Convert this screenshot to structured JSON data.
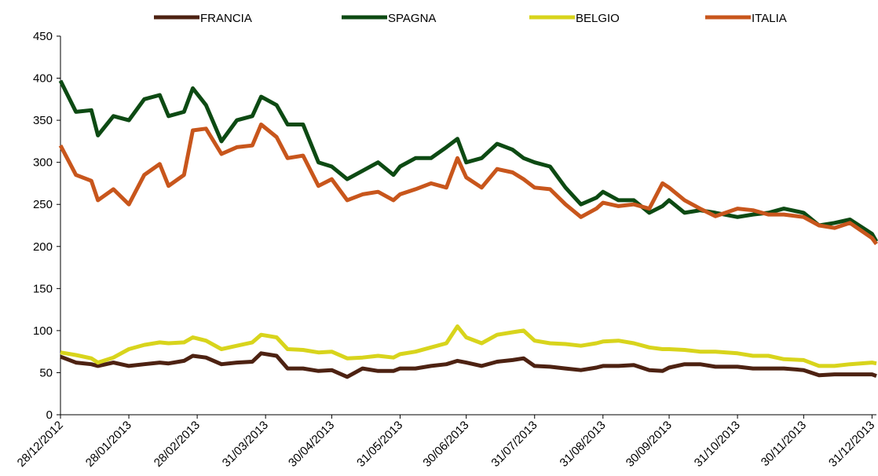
{
  "chart_data": {
    "type": "line",
    "x": [
      "28/12/2012",
      "04/01/2013",
      "11/01/2013",
      "14/01/2013",
      "21/01/2013",
      "28/01/2013",
      "04/02/2013",
      "11/02/2013",
      "15/02/2013",
      "22/02/2013",
      "26/02/2013",
      "04/03/2013",
      "11/03/2013",
      "18/03/2013",
      "25/03/2013",
      "29/03/2013",
      "05/04/2013",
      "10/04/2013",
      "17/04/2013",
      "24/04/2013",
      "30/04/2013",
      "07/05/2013",
      "14/05/2013",
      "21/05/2013",
      "28/05/2013",
      "31/05/2013",
      "07/06/2013",
      "14/06/2013",
      "21/06/2013",
      "26/06/2013",
      "30/06/2013",
      "07/07/2013",
      "14/07/2013",
      "21/07/2013",
      "26/07/2013",
      "31/07/2013",
      "07/08/2013",
      "14/08/2013",
      "21/08/2013",
      "28/08/2013",
      "31/08/2013",
      "07/09/2013",
      "14/09/2013",
      "21/09/2013",
      "27/09/2013",
      "30/09/2013",
      "07/10/2013",
      "14/10/2013",
      "21/10/2013",
      "31/10/2013",
      "07/11/2013",
      "14/11/2013",
      "21/11/2013",
      "30/11/2013",
      "07/12/2013",
      "14/12/2013",
      "21/12/2013",
      "31/12/2013",
      "02/01/2014"
    ],
    "series": [
      {
        "name": "FRANCIA",
        "color": "#4d2212",
        "values": [
          69,
          62,
          60,
          58,
          62,
          58,
          60,
          62,
          61,
          64,
          70,
          68,
          60,
          62,
          63,
          73,
          70,
          55,
          55,
          52,
          53,
          45,
          55,
          52,
          52,
          55,
          55,
          58,
          60,
          64,
          62,
          58,
          63,
          65,
          67,
          58,
          57,
          55,
          53,
          56,
          58,
          58,
          59,
          53,
          52,
          56,
          60,
          60,
          57,
          57,
          55,
          55,
          55,
          53,
          47,
          48,
          48,
          48,
          46
        ]
      },
      {
        "name": "SPAGNA",
        "color": "#0d4a13",
        "values": [
          397,
          360,
          362,
          332,
          355,
          350,
          375,
          380,
          355,
          360,
          388,
          368,
          325,
          350,
          355,
          378,
          368,
          345,
          345,
          300,
          295,
          280,
          290,
          300,
          285,
          295,
          305,
          305,
          318,
          328,
          300,
          305,
          322,
          315,
          305,
          300,
          295,
          270,
          250,
          258,
          265,
          255,
          255,
          240,
          248,
          255,
          240,
          243,
          240,
          235,
          238,
          240,
          245,
          240,
          225,
          228,
          232,
          215,
          206
        ]
      },
      {
        "name": "BELGIO",
        "color": "#d8d41c",
        "values": [
          74,
          71,
          67,
          62,
          68,
          78,
          83,
          86,
          85,
          86,
          92,
          88,
          78,
          82,
          86,
          95,
          92,
          78,
          77,
          74,
          75,
          67,
          68,
          70,
          68,
          72,
          75,
          80,
          85,
          105,
          92,
          85,
          95,
          98,
          100,
          88,
          85,
          84,
          82,
          85,
          87,
          88,
          85,
          80,
          78,
          78,
          77,
          75,
          75,
          73,
          70,
          70,
          66,
          65,
          58,
          58,
          60,
          62,
          61
        ]
      },
      {
        "name": "ITALIA",
        "color": "#c8561c",
        "values": [
          320,
          285,
          278,
          255,
          268,
          250,
          285,
          298,
          272,
          285,
          338,
          340,
          310,
          318,
          320,
          345,
          330,
          305,
          308,
          272,
          280,
          255,
          262,
          265,
          255,
          262,
          268,
          275,
          270,
          305,
          282,
          270,
          292,
          288,
          280,
          270,
          268,
          250,
          235,
          245,
          252,
          248,
          250,
          245,
          275,
          270,
          255,
          245,
          236,
          245,
          243,
          238,
          238,
          235,
          225,
          222,
          228,
          210,
          203
        ]
      }
    ],
    "xlim": [
      "28/12/2012",
      "02/01/2014"
    ],
    "xticks": [
      "28/12/2012",
      "28/01/2013",
      "28/02/2013",
      "31/03/2013",
      "30/04/2013",
      "31/05/2013",
      "30/06/2013",
      "31/07/2013",
      "31/08/2013",
      "30/09/2013",
      "31/10/2013",
      "30/11/2013",
      "31/12/2013"
    ],
    "ylim": [
      0,
      450
    ],
    "yticks": [
      0,
      50,
      100,
      150,
      200,
      250,
      300,
      350,
      400,
      450
    ],
    "legend": "top"
  }
}
